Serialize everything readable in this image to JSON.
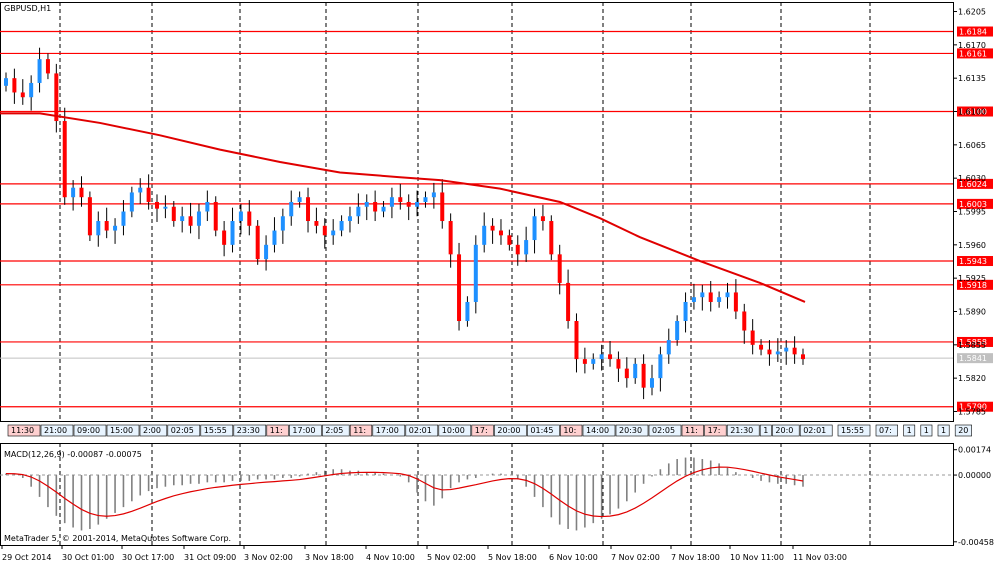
{
  "chart_data": {
    "type": "candlestick",
    "symbol_title": "GBPUSD,H1",
    "copyright": "MetaTrader 5, © 2001-2014, MetaQuotes Software Corp.",
    "y_axis": {
      "ticks": [
        "1.6205",
        "1.6170",
        "1.6135",
        "1.6100",
        "1.6065",
        "1.6030",
        "1.5995",
        "1.5960",
        "1.5925",
        "1.5890",
        "1.5855",
        "1.5820",
        "1.5785"
      ],
      "range": [
        1.5775,
        1.6215
      ]
    },
    "x_axis": {
      "ticks": [
        "29 Oct 2014",
        "30 Oct 01:00",
        "30 Oct 17:00",
        "31 Oct 09:00",
        "3 Nov 02:00",
        "3 Nov 18:00",
        "4 Nov 10:00",
        "5 Nov 02:00",
        "5 Nov 18:00",
        "6 Nov 10:00",
        "7 Nov 02:00",
        "7 Nov 18:00",
        "10 Nov 11:00",
        "11 Nov 03:00"
      ]
    },
    "horizontal_levels": [
      {
        "label": "1.6184",
        "value": 1.6184,
        "color": "#ff0000"
      },
      {
        "label": "1.6161",
        "value": 1.6161,
        "color": "#ff0000"
      },
      {
        "label": "1.6100",
        "value": 1.61,
        "color": "#ff0000"
      },
      {
        "label": "1.6024",
        "value": 1.6024,
        "color": "#ff0000"
      },
      {
        "label": "1.6003",
        "value": 1.6003,
        "color": "#ff0000"
      },
      {
        "label": "1.5943",
        "value": 1.5943,
        "color": "#ff0000"
      },
      {
        "label": "1.5918",
        "value": 1.5918,
        "color": "#ff0000"
      },
      {
        "label": "1.5858",
        "value": 1.5858,
        "color": "#ff0000"
      },
      {
        "label": "1.5790",
        "value": 1.579,
        "color": "#ff0000"
      }
    ],
    "current_price": {
      "label": "1.5841",
      "value": 1.5841,
      "color": "#c0c0c0"
    },
    "moving_average": {
      "color": "#e00000",
      "points": [
        [
          0,
          1.6098
        ],
        [
          40,
          1.6098
        ],
        [
          100,
          1.6088
        ],
        [
          160,
          1.6075
        ],
        [
          220,
          1.606
        ],
        [
          280,
          1.6047
        ],
        [
          340,
          1.6036
        ],
        [
          400,
          1.6031
        ],
        [
          440,
          1.6028
        ],
        [
          500,
          1.6019
        ],
        [
          560,
          1.6005
        ],
        [
          600,
          1.5988
        ],
        [
          640,
          1.5968
        ],
        [
          700,
          1.5943
        ],
        [
          760,
          1.592
        ],
        [
          805,
          1.59
        ]
      ]
    },
    "candles": [
      {
        "c": 1.6135
      },
      {
        "c": 1.612
      },
      {
        "c": 1.6115
      },
      {
        "c": 1.613
      },
      {
        "c": 1.6155
      },
      {
        "c": 1.614
      },
      {
        "c": 1.609
      },
      {
        "c": 1.601
      },
      {
        "c": 1.602
      },
      {
        "c": 1.601
      },
      {
        "c": 1.597
      },
      {
        "c": 1.5985
      },
      {
        "c": 1.5975
      },
      {
        "c": 1.598
      },
      {
        "c": 1.5995
      },
      {
        "c": 1.6015
      },
      {
        "c": 1.602
      },
      {
        "c": 1.6005
      },
      {
        "c": 1.5998
      },
      {
        "c": 1.6
      },
      {
        "c": 1.5985
      },
      {
        "c": 1.599
      },
      {
        "c": 1.598
      },
      {
        "c": 1.5995
      },
      {
        "c": 1.6005
      },
      {
        "c": 1.5975
      },
      {
        "c": 1.596
      },
      {
        "c": 1.5985
      },
      {
        "c": 1.5995
      },
      {
        "c": 1.598
      },
      {
        "c": 1.5945
      },
      {
        "c": 1.596
      },
      {
        "c": 1.5975
      },
      {
        "c": 1.599
      },
      {
        "c": 1.6005
      },
      {
        "c": 1.601
      },
      {
        "c": 1.5985
      },
      {
        "c": 1.598
      },
      {
        "c": 1.597
      },
      {
        "c": 1.5975
      },
      {
        "c": 1.5985
      },
      {
        "c": 1.599
      },
      {
        "c": 1.6
      },
      {
        "c": 1.6005
      },
      {
        "c": 1.5995
      },
      {
        "c": 1.6
      },
      {
        "c": 1.601
      },
      {
        "c": 1.6005
      },
      {
        "c": 1.6
      },
      {
        "c": 1.6005
      },
      {
        "c": 1.601
      },
      {
        "c": 1.6015
      },
      {
        "c": 1.5985
      },
      {
        "c": 1.595
      },
      {
        "c": 1.588
      },
      {
        "c": 1.59
      },
      {
        "c": 1.596
      },
      {
        "c": 1.598
      },
      {
        "c": 1.5975
      },
      {
        "c": 1.597
      },
      {
        "c": 1.596
      },
      {
        "c": 1.595
      },
      {
        "c": 1.5965
      },
      {
        "c": 1.599
      },
      {
        "c": 1.5985
      },
      {
        "c": 1.595
      },
      {
        "c": 1.592
      },
      {
        "c": 1.588
      },
      {
        "c": 1.584
      },
      {
        "c": 1.5835
      },
      {
        "c": 1.584
      },
      {
        "c": 1.5845
      },
      {
        "c": 1.584
      },
      {
        "c": 1.583
      },
      {
        "c": 1.582
      },
      {
        "c": 1.5835
      },
      {
        "c": 1.581
      },
      {
        "c": 1.582
      },
      {
        "c": 1.5845
      },
      {
        "c": 1.586
      },
      {
        "c": 1.588
      },
      {
        "c": 1.59
      },
      {
        "c": 1.5905
      },
      {
        "c": 1.591
      },
      {
        "c": 1.59
      },
      {
        "c": 1.5905
      },
      {
        "c": 1.591
      },
      {
        "c": 1.589
      },
      {
        "c": 1.587
      },
      {
        "c": 1.5855
      },
      {
        "c": 1.585
      },
      {
        "c": 1.5845
      },
      {
        "c": 1.5848
      },
      {
        "c": 1.5852
      },
      {
        "c": 1.5845
      },
      {
        "c": 1.584
      }
    ],
    "timeline_tags_left": [
      "11:30",
      "21:00",
      "09:00",
      "15:00",
      "2:00",
      "02:05",
      "15:55",
      "23:30",
      "11:",
      "17:00",
      "2:05",
      "11:",
      "17:00",
      "02:01",
      "10:00",
      "17:",
      "20:00",
      "01:45",
      "10:",
      "14:00",
      "20:30",
      "02:05",
      "11:",
      "17:",
      "21:30",
      "1",
      "20:0",
      "02:01"
    ],
    "timeline_tags_right": [
      "15:55",
      "07:",
      "1",
      "1",
      "1",
      "20"
    ],
    "macd": {
      "label": "MACD(12,26,9) -0.00087 -0.00075",
      "ticks": [
        "0.00174",
        "0.00000",
        "-0.00458"
      ],
      "range": [
        -0.0048,
        0.0022
      ],
      "histogram": [
        0.0001,
        5e-05,
        -0.0002,
        -0.0008,
        -0.0015,
        -0.0022,
        -0.0028,
        -0.0033,
        -0.0036,
        -0.0038,
        -0.0037,
        -0.0034,
        -0.003,
        -0.0026,
        -0.0022,
        -0.0018,
        -0.0014,
        -0.0011,
        -0.0009,
        -0.0008,
        -0.0007,
        -0.0007,
        -0.0006,
        -0.0006,
        -0.0005,
        -0.0005,
        -0.0005,
        -0.0004,
        -0.0004,
        -0.0004,
        -0.0003,
        -0.0003,
        -0.0003,
        -0.0002,
        -0.0002,
        -0.0001,
        0.0001,
        0.0002,
        0.0003,
        0.0004,
        0.0004,
        0.0003,
        0.0003,
        0.0002,
        0.0002,
        0.0001,
        0.0,
        -0.0001,
        -0.0005,
        -0.0012,
        -0.0018,
        -0.0021,
        -0.0016,
        -0.0009,
        -0.0005,
        -0.0003,
        -0.0002,
        0.0,
        0.0001,
        0.0001,
        0.0,
        -0.0003,
        -0.0008,
        -0.0015,
        -0.0022,
        -0.0029,
        -0.0034,
        -0.0037,
        -0.0038,
        -0.0036,
        -0.0033,
        -0.003,
        -0.0027,
        -0.0023,
        -0.0018,
        -0.0012,
        -0.0006,
        -0.0001,
        0.0004,
        0.0008,
        0.0011,
        0.0012,
        0.0012,
        0.0011,
        0.001,
        0.0008,
        0.0005,
        0.0002,
        0.0,
        -0.0002,
        -0.0004,
        -0.0005,
        -0.0006,
        -0.0006,
        -0.0007,
        -0.0008
      ],
      "signal_color": "#e00000"
    }
  }
}
